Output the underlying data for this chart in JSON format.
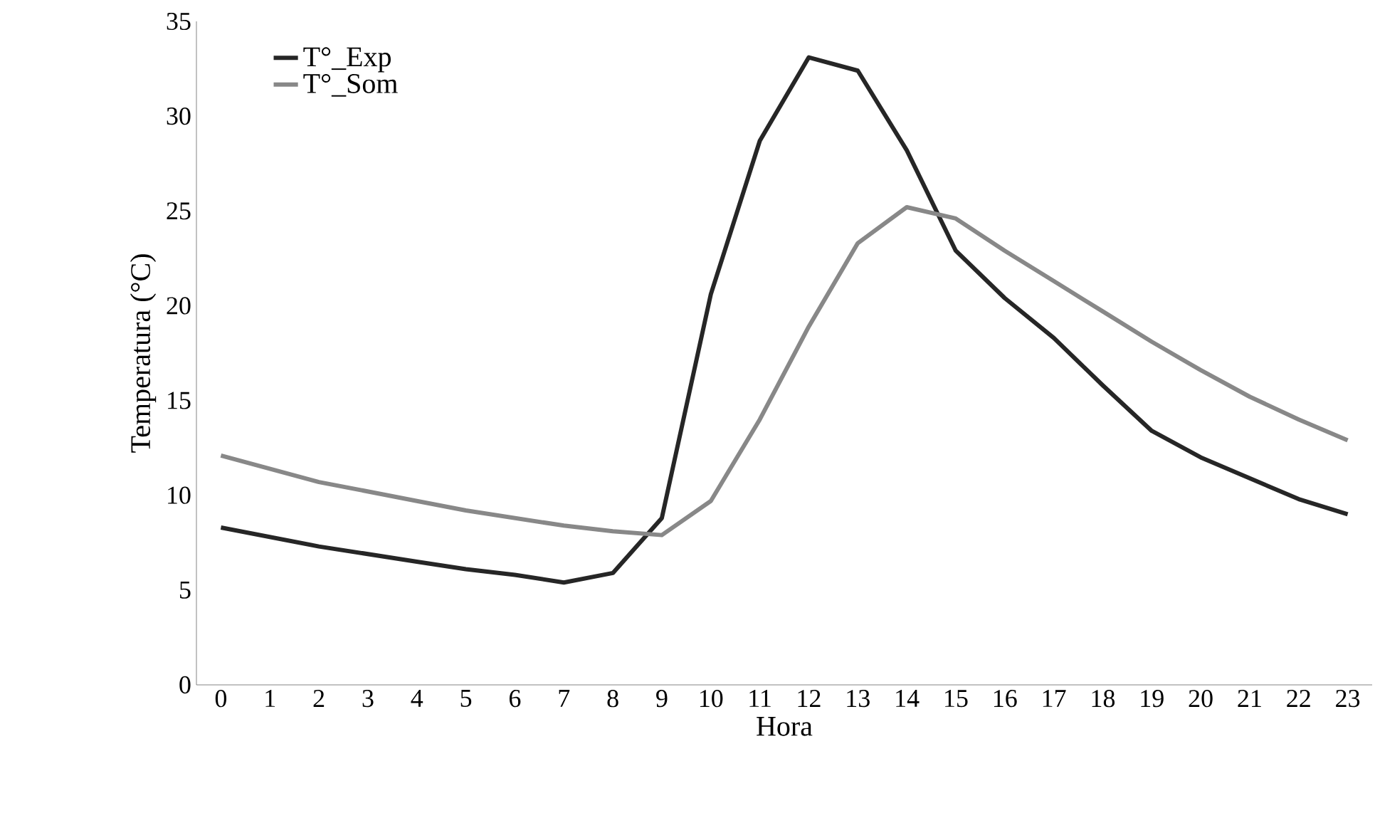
{
  "chart_data": {
    "type": "line",
    "xlabel": "Hora",
    "ylabel": "Temperatura (°C)",
    "categories": [
      "0",
      "1",
      "2",
      "3",
      "4",
      "5",
      "6",
      "7",
      "8",
      "9",
      "10",
      "11",
      "12",
      "13",
      "14",
      "15",
      "16",
      "17",
      "18",
      "19",
      "20",
      "21",
      "22",
      "23"
    ],
    "series": [
      {
        "name": "T°_Exp",
        "color": "#262626",
        "values": [
          8.3,
          7.8,
          7.3,
          6.9,
          6.5,
          6.1,
          5.8,
          5.4,
          5.9,
          8.8,
          20.6,
          28.7,
          33.1,
          32.4,
          28.2,
          22.9,
          20.4,
          18.3,
          15.8,
          13.4,
          12.0,
          10.9,
          9.8,
          9.0
        ]
      },
      {
        "name": "T°_Som",
        "color": "#888888",
        "values": [
          12.1,
          11.4,
          10.7,
          10.2,
          9.7,
          9.2,
          8.8,
          8.4,
          8.1,
          7.9,
          9.7,
          14.0,
          18.9,
          23.3,
          25.2,
          24.6,
          22.9,
          21.3,
          19.7,
          18.1,
          16.6,
          15.2,
          14.0,
          12.9
        ]
      }
    ],
    "ylim": [
      0,
      35
    ],
    "yticks": [
      0,
      5,
      10,
      15,
      20,
      25,
      30,
      35
    ],
    "grid": false,
    "legend": "top left"
  }
}
